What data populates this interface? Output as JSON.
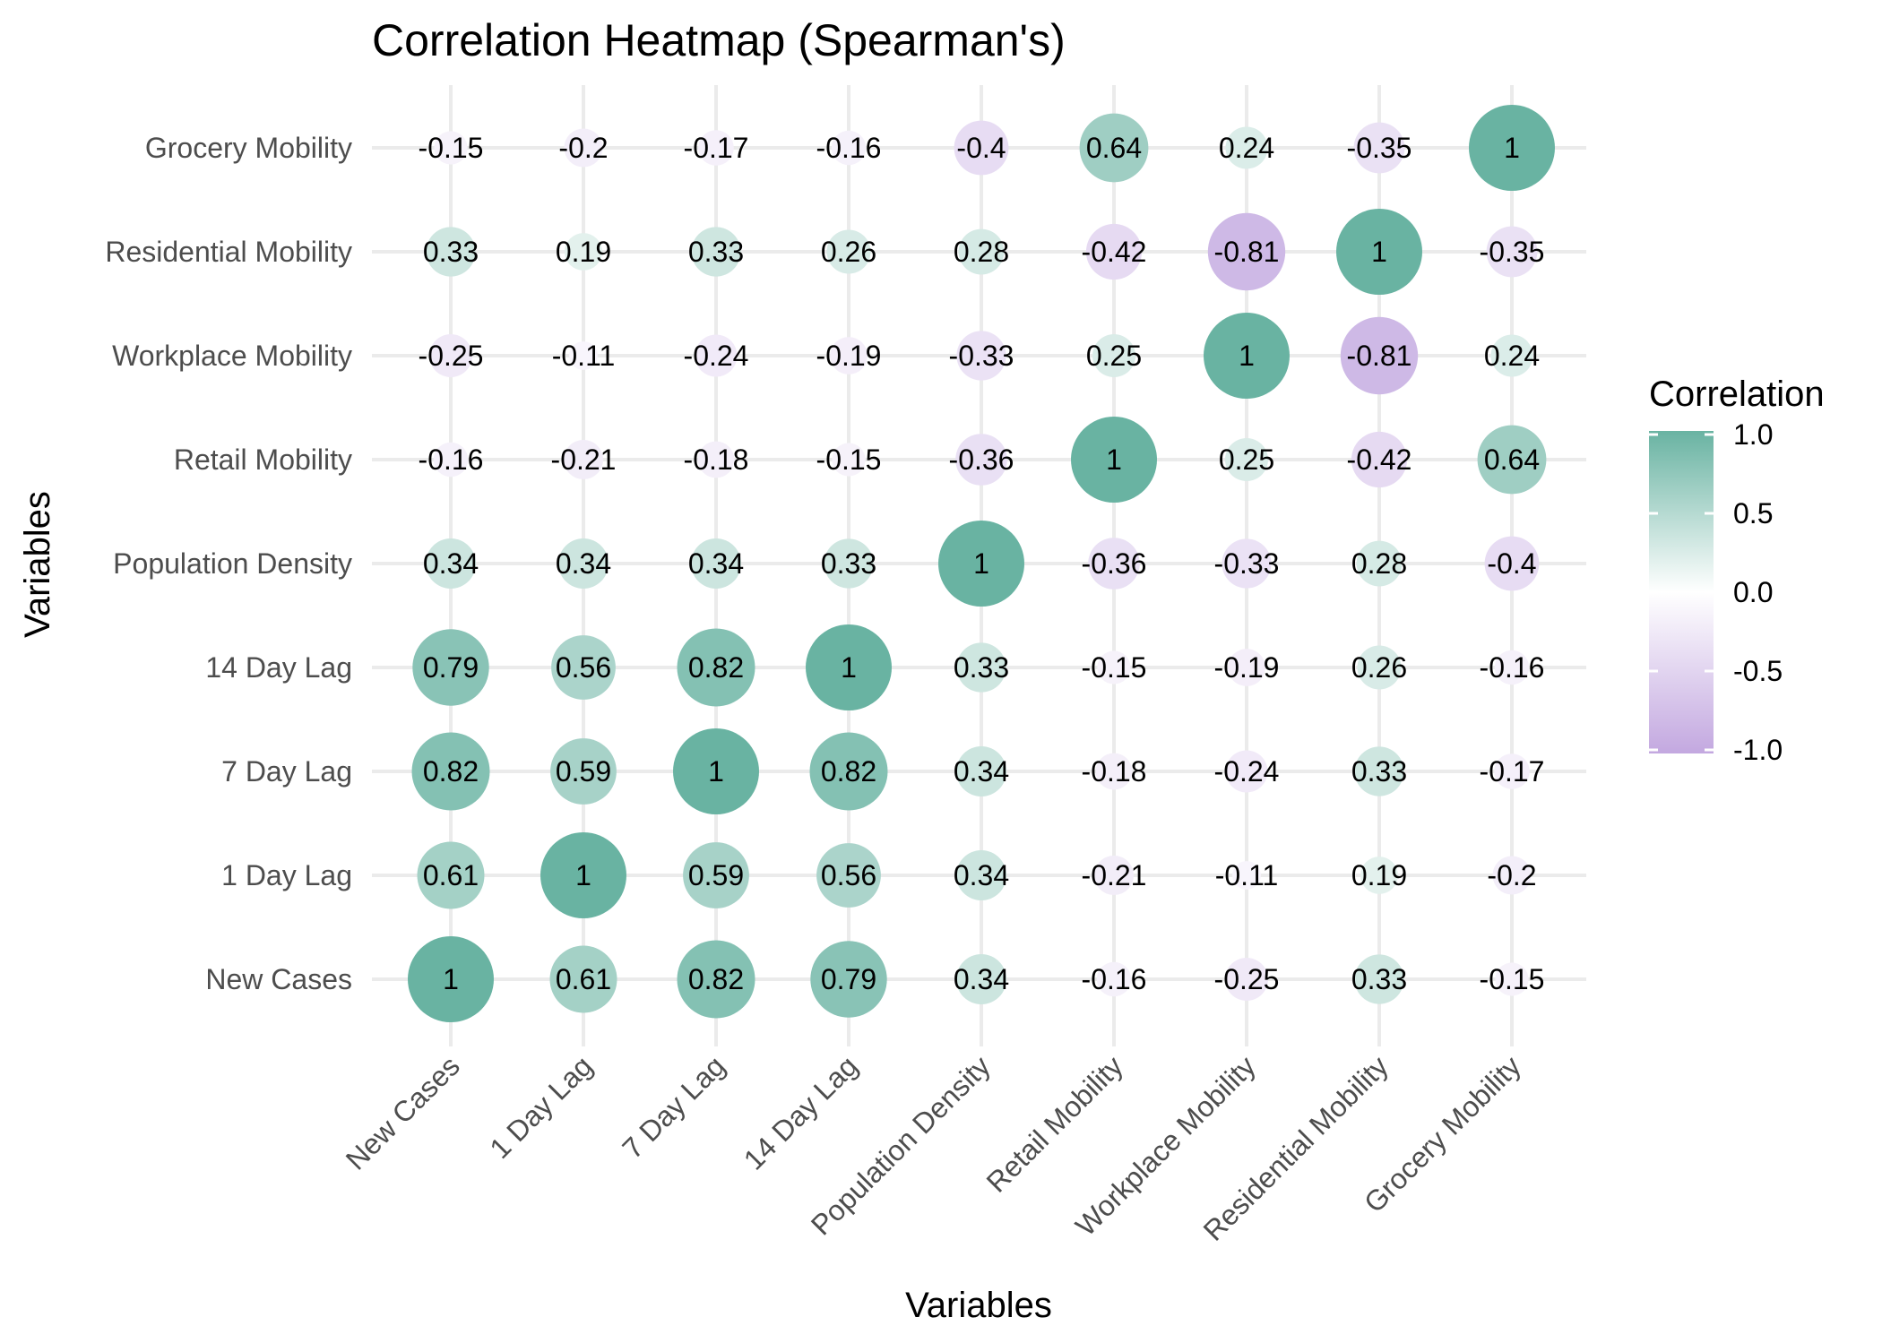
{
  "chart_data": {
    "type": "heatmap",
    "title": "Correlation Heatmap (Spearman's)",
    "xlabel": "Variables",
    "ylabel": "Variables",
    "variables": [
      "New Cases",
      "1 Day Lag",
      "7 Day Lag",
      "14 Day Lag",
      "Population Density",
      "Retail Mobility",
      "Workplace Mobility",
      "Residential Mobility",
      "Grocery Mobility"
    ],
    "matrix": [
      [
        1,
        0.61,
        0.82,
        0.79,
        0.34,
        -0.16,
        -0.25,
        0.33,
        -0.15
      ],
      [
        0.61,
        1,
        0.59,
        0.56,
        0.34,
        -0.21,
        -0.11,
        0.19,
        -0.2
      ],
      [
        0.82,
        0.59,
        1,
        0.82,
        0.34,
        -0.18,
        -0.24,
        0.33,
        -0.17
      ],
      [
        0.79,
        0.56,
        0.82,
        1,
        0.33,
        -0.15,
        -0.19,
        0.26,
        -0.16
      ],
      [
        0.34,
        0.34,
        0.34,
        0.33,
        1,
        -0.36,
        -0.33,
        0.28,
        -0.4
      ],
      [
        -0.16,
        -0.21,
        -0.18,
        -0.15,
        -0.36,
        1,
        0.25,
        -0.42,
        0.64
      ],
      [
        -0.25,
        -0.11,
        -0.24,
        -0.19,
        -0.33,
        0.25,
        1,
        -0.81,
        0.24
      ],
      [
        0.33,
        0.19,
        0.33,
        0.26,
        0.28,
        -0.42,
        -0.81,
        1,
        -0.35
      ],
      [
        -0.15,
        -0.2,
        -0.17,
        -0.16,
        -0.4,
        0.64,
        0.24,
        -0.35,
        1
      ]
    ],
    "legend": {
      "title": "Correlation",
      "ticks": [
        "1.0",
        "0.5",
        "0.0",
        "-0.5",
        "-1.0"
      ],
      "range": [
        -1,
        1
      ],
      "placement": "right"
    },
    "colors": {
      "positive": "#69b3a2",
      "mid": "#ffffff",
      "negative": "#c3a8e0"
    },
    "grid": true
  }
}
